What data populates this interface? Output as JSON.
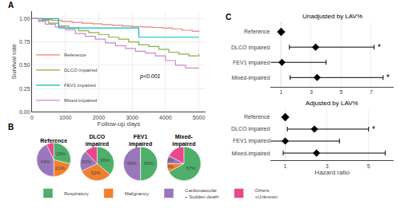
{
  "chart_data": [
    {
      "type": "line",
      "line_style": "step",
      "annotations": [
        {
          "text": "A"
        },
        {
          "text": "p<0.001"
        }
      ],
      "xlabel": "Follow-up days",
      "ylabel": "Survival rate",
      "xlim": [
        0,
        5200
      ],
      "xticks": [
        0,
        1000,
        2000,
        3000,
        4000,
        5000
      ],
      "ylim": [
        0.0,
        1.08
      ],
      "yticks": [
        {
          "value": 0.0,
          "label": "0.00"
        },
        0.25,
        {
          "value": 0.5,
          "label": "0.50"
        },
        0.75,
        {
          "value": 1.0,
          "label": "1.00"
        }
      ],
      "grid": true,
      "legend": "lower left",
      "series": [
        {
          "name": "Reference",
          "color": "#F08080",
          "x": [
            0,
            300,
            600,
            900,
            1200,
            1500,
            1800,
            2100,
            2400,
            2700,
            3000,
            3300,
            3600,
            3900,
            4200,
            4500,
            4800,
            5000
          ],
          "values": [
            1.0,
            0.99,
            0.98,
            0.97,
            0.96,
            0.95,
            0.945,
            0.935,
            0.93,
            0.92,
            0.915,
            0.91,
            0.905,
            0.9,
            0.89,
            0.875,
            0.865,
            0.855
          ]
        },
        {
          "name": "DLCO impaired",
          "color": "#88B04B",
          "x": [
            0,
            200,
            500,
            800,
            1100,
            1400,
            1700,
            2000,
            2300,
            2600,
            2900,
            3200,
            3500,
            3800,
            4100,
            4400,
            4700,
            5000
          ],
          "values": [
            1.0,
            0.98,
            0.95,
            0.92,
            0.9,
            0.87,
            0.85,
            0.83,
            0.8,
            0.78,
            0.75,
            0.72,
            0.7,
            0.67,
            0.64,
            0.62,
            0.6,
            0.62
          ]
        },
        {
          "name": "FEV1 impaired",
          "color": "#00BFBF",
          "x": [
            0,
            400,
            800,
            1200,
            1600,
            2000,
            2400,
            2800,
            3200,
            3600,
            4000,
            4400,
            4800,
            5000
          ],
          "values": [
            1.0,
            1.0,
            0.9,
            0.9,
            0.9,
            0.9,
            0.9,
            0.9,
            0.8,
            0.8,
            0.8,
            0.8,
            0.8,
            0.8
          ]
        },
        {
          "name": "Mixed-impaired",
          "color": "#CC88CC",
          "x": [
            0,
            200,
            400,
            700,
            1000,
            1300,
            1600,
            1900,
            2200,
            2500,
            2800,
            3100,
            3400,
            3700,
            4000,
            4300,
            4600,
            5000
          ],
          "values": [
            1.0,
            0.97,
            0.94,
            0.91,
            0.88,
            0.84,
            0.81,
            0.78,
            0.74,
            0.71,
            0.68,
            0.65,
            0.63,
            0.6,
            0.55,
            0.5,
            0.47,
            0.47
          ]
        }
      ]
    },
    {
      "type": "pie",
      "annotations": [
        {
          "text": "B"
        }
      ],
      "categories": [
        "Respiratory",
        "Malignancy",
        "Cardiovascular\n+ Sudden death",
        "Others\n+Unknown"
      ],
      "colors": [
        "#4DAF6A",
        "#F08030",
        "#9977BB",
        "#E8488A"
      ],
      "legend": "lower left",
      "data_labels": true,
      "series": [
        {
          "name": "Reference",
          "values": [
            29,
            21,
            43,
            7
          ],
          "value_labels": [
            "29%",
            "21%",
            "43%",
            null
          ]
        },
        {
          "name": "DLCO\nimpaired",
          "values": [
            36,
            32,
            20,
            12
          ],
          "value_labels": [
            "36%",
            "32%",
            "20%",
            null
          ]
        },
        {
          "name": "FEV1\nimpaired",
          "values": [
            50,
            0,
            50,
            0
          ],
          "value_labels": [
            "50%",
            null,
            "50%",
            null
          ]
        },
        {
          "name": "Mixed-\nimpaired",
          "values": [
            67,
            8,
            8,
            17
          ],
          "value_labels": [
            "67%",
            "8%",
            "8%",
            null
          ]
        }
      ]
    },
    {
      "type": "scatter",
      "orientation": "horizontal",
      "marker": "diamond",
      "color": "#000000",
      "title": "Unadjusted by LAV%",
      "annotations": [
        {
          "text": "C"
        },
        {
          "text": "*",
          "category": "DLCO impaired"
        },
        {
          "text": "*",
          "category": "Mixed-impaired"
        }
      ],
      "categories": [
        "Reference",
        "DLCO impaired",
        "FEV1 impaired",
        "Mixed-impaired"
      ],
      "values": [
        1.0,
        3.3,
        1.05,
        3.4
      ],
      "ci_low": [
        1.0,
        1.55,
        0.25,
        1.6
      ],
      "ci_high": [
        1.0,
        7.2,
        4.0,
        7.8
      ],
      "vline": 1.0,
      "xlim": [
        0.3,
        8.5
      ],
      "xticks": [
        1,
        3,
        5,
        7
      ],
      "grid": "x"
    },
    {
      "type": "scatter",
      "orientation": "horizontal",
      "marker": "diamond",
      "color": "#000000",
      "title": "Adjusted by LAV%",
      "xlabel": "Hazard ratio",
      "annotations": [
        {
          "text": "*",
          "category": "DLCO impaired"
        }
      ],
      "categories": [
        "Reference",
        "DLCO impaired",
        "FEV1 impaired",
        "Mixed-impaired"
      ],
      "values": [
        1.0,
        2.4,
        1.0,
        2.5
      ],
      "ci_low": [
        1.0,
        1.1,
        0.28,
        0.9
      ],
      "ci_high": [
        1.0,
        5.0,
        3.6,
        5.8
      ],
      "vline": 1.0,
      "xlim": [
        0.3,
        6.2
      ],
      "xticks": [
        1,
        3,
        5
      ],
      "grid": "x"
    }
  ]
}
